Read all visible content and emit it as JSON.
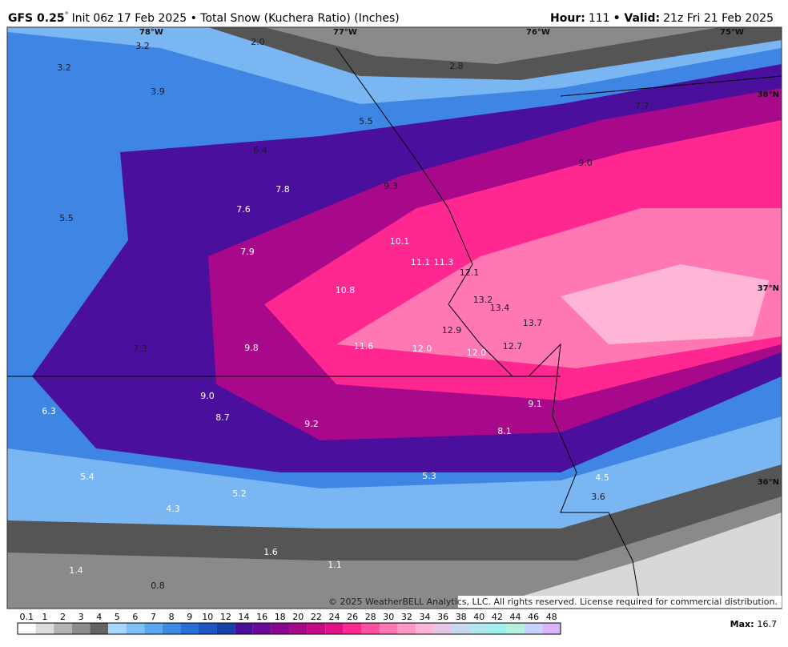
{
  "header": {
    "model": "GFS 0.25",
    "degree": "°",
    "subtitle": "Init 06z 17 Feb 2025 • Total Snow (Kuchera Ratio) (Inches)",
    "hour_label": "Hour:",
    "hour": "111",
    "valid_label": "• Valid:",
    "valid": "21z Fri 21 Feb 2025"
  },
  "map": {
    "labels": [
      "3.2",
      "2.0",
      "2.8",
      "3.2",
      "3.9",
      "5.5",
      "7.7",
      "6.4",
      "9.0",
      "7.8",
      "9.3",
      "7.6",
      "5.5",
      "10.1",
      "7.9",
      "11.1",
      "11.3",
      "12.1",
      "10.8",
      "13.2",
      "13.4",
      "13.7",
      "12.9",
      "7.3",
      "9.8",
      "11.6",
      "12.0",
      "12.0",
      "12.7",
      "9.0",
      "9.1",
      "6.3",
      "8.7",
      "9.2",
      "8.1",
      "5.3",
      "5.4",
      "4.5",
      "5.2",
      "3.6",
      "4.3",
      "1.6",
      "1.1",
      "1.4",
      "0.8"
    ],
    "longitudes": [
      "78°W",
      "77°W",
      "76°W",
      "75°W"
    ],
    "latitudes": [
      "38°N",
      "37°N",
      "36°N"
    ],
    "copyright": "© 2025 WeatherBELL Analytics, LLC. All rights reserved. License required for commercial distribution."
  },
  "colorbar": {
    "labels": [
      "0.1",
      "1",
      "2",
      "3",
      "4",
      "5",
      "6",
      "7",
      "8",
      "9",
      "10",
      "12",
      "14",
      "16",
      "18",
      "20",
      "22",
      "24",
      "26",
      "28",
      "30",
      "32",
      "34",
      "36",
      "38",
      "40",
      "42",
      "44",
      "46",
      "48"
    ],
    "colors": [
      "#ffffff",
      "#dcdcdc",
      "#b4b4b4",
      "#8c8c8c",
      "#646464",
      "#a8d8ff",
      "#7ec0f8",
      "#5aa6f0",
      "#3c8ce6",
      "#2a6fd8",
      "#1f55c4",
      "#173fa8",
      "#4a0f9c",
      "#6e0a9a",
      "#8a088f",
      "#a8088a",
      "#c80a86",
      "#e4108a",
      "#ff2890",
      "#ff50a0",
      "#ff78b4",
      "#ff9ac6",
      "#ffb6d6",
      "#e6c8e6",
      "#c8d8f0",
      "#b4e6f0",
      "#a0f0f0",
      "#b4f0e0",
      "#c8d2ff",
      "#d8b4ff"
    ]
  },
  "footer": {
    "max_label": "Max:",
    "max": "16.7"
  }
}
